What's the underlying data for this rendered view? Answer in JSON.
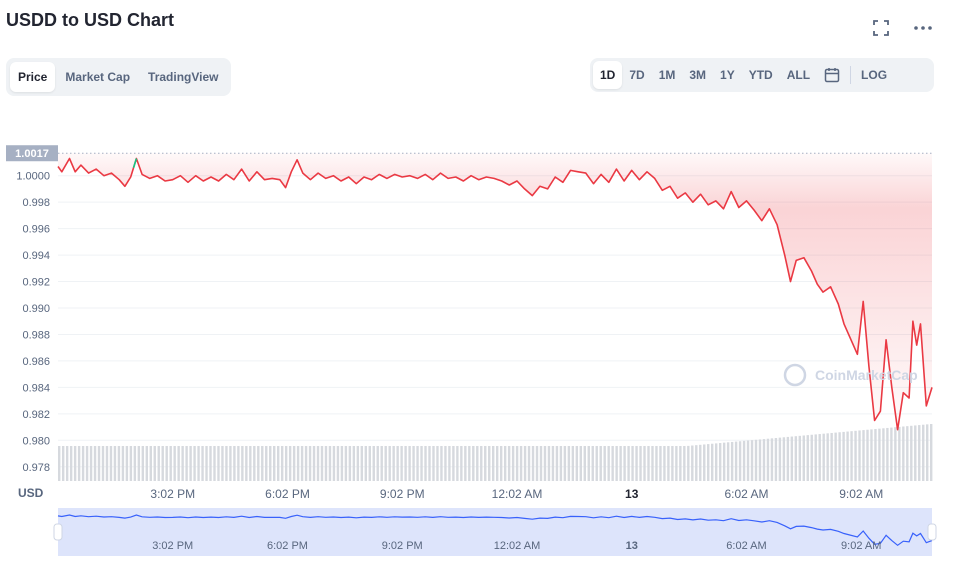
{
  "header": {
    "title": "USDD to USD Chart",
    "fullscreen_icon": "expand-icon",
    "more_icon": "more-dots-icon"
  },
  "view_tabs": [
    {
      "label": "Price",
      "active": true
    },
    {
      "label": "Market Cap",
      "active": false
    },
    {
      "label": "TradingView",
      "active": false
    }
  ],
  "range_tabs": [
    {
      "label": "1D",
      "active": true
    },
    {
      "label": "7D",
      "active": false
    },
    {
      "label": "1M",
      "active": false
    },
    {
      "label": "3M",
      "active": false
    },
    {
      "label": "1Y",
      "active": false
    },
    {
      "label": "YTD",
      "active": false
    },
    {
      "label": "ALL",
      "active": false
    }
  ],
  "calendar_icon": "calendar-icon",
  "log_label": "LOG",
  "colors": {
    "line": "#ea3943",
    "line_up": "#16c784",
    "volume": "#d6d9de",
    "nav_line": "#3861fb",
    "nav_fill": "#dde4fb",
    "price_tag_bg": "#a6b0c3"
  },
  "chart_data": {
    "type": "line",
    "currency_label": "USD",
    "watermark": "CoinMarketCap",
    "current_price_label": "1.0017",
    "reference_price": 1.0017,
    "ylim": [
      0.977,
      1.0027
    ],
    "y_ticks": [
      {
        "value": 1.0,
        "label": "1.0000"
      },
      {
        "value": 0.998,
        "label": "0.998"
      },
      {
        "value": 0.996,
        "label": "0.996"
      },
      {
        "value": 0.994,
        "label": "0.994"
      },
      {
        "value": 0.992,
        "label": "0.992"
      },
      {
        "value": 0.99,
        "label": "0.990"
      },
      {
        "value": 0.988,
        "label": "0.988"
      },
      {
        "value": 0.986,
        "label": "0.986"
      },
      {
        "value": 0.984,
        "label": "0.984"
      },
      {
        "value": 0.982,
        "label": "0.982"
      },
      {
        "value": 0.98,
        "label": "0.980"
      },
      {
        "value": 0.978,
        "label": "0.978"
      }
    ],
    "x_ticks": [
      {
        "label": "3:02 PM",
        "hour": 3
      },
      {
        "label": "6:02 PM",
        "hour": 6
      },
      {
        "label": "9:02 PM",
        "hour": 9
      },
      {
        "label": "12:02 AM",
        "hour": 12
      },
      {
        "label": "13",
        "hour": 15,
        "bold": true
      },
      {
        "label": "6:02 AM",
        "hour": 18
      },
      {
        "label": "9:02 AM",
        "hour": 21
      }
    ],
    "price": [
      [
        0,
        1.0007
      ],
      [
        0.1,
        1.0003
      ],
      [
        0.3,
        1.0013
      ],
      [
        0.45,
        1.0003
      ],
      [
        0.6,
        1.0008
      ],
      [
        0.8,
        1.0002
      ],
      [
        1.0,
        1.0005
      ],
      [
        1.2,
        1.0
      ],
      [
        1.4,
        1.0002
      ],
      [
        1.6,
        0.9997
      ],
      [
        1.75,
        0.9992
      ],
      [
        1.9,
        0.9999
      ],
      [
        2.05,
        1.0013
      ],
      [
        2.2,
        1.0001
      ],
      [
        2.4,
        0.9998
      ],
      [
        2.6,
        1.0
      ],
      [
        2.8,
        0.9996
      ],
      [
        3.0,
        0.9997
      ],
      [
        3.2,
        1.0
      ],
      [
        3.4,
        0.9995
      ],
      [
        3.6,
        1.0
      ],
      [
        3.8,
        0.9996
      ],
      [
        4.0,
        0.9999
      ],
      [
        4.2,
        0.9996
      ],
      [
        4.4,
        1.0001
      ],
      [
        4.6,
        0.9997
      ],
      [
        4.8,
        1.0005
      ],
      [
        5.0,
        0.9996
      ],
      [
        5.2,
        1.0003
      ],
      [
        5.4,
        0.9997
      ],
      [
        5.6,
        0.9998
      ],
      [
        5.8,
        0.9997
      ],
      [
        5.95,
        0.9991
      ],
      [
        6.1,
        1.0003
      ],
      [
        6.25,
        1.0012
      ],
      [
        6.4,
        1.0002
      ],
      [
        6.6,
        0.9997
      ],
      [
        6.8,
        1.0002
      ],
      [
        7.0,
        0.9998
      ],
      [
        7.2,
        1.0
      ],
      [
        7.4,
        0.9996
      ],
      [
        7.6,
        0.9999
      ],
      [
        7.8,
        0.9994
      ],
      [
        8.0,
        0.9999
      ],
      [
        8.2,
        0.9997
      ],
      [
        8.4,
        1.0001
      ],
      [
        8.6,
        0.9998
      ],
      [
        8.8,
        1.0001
      ],
      [
        9.0,
        0.9999
      ],
      [
        9.2,
        1.0
      ],
      [
        9.4,
        0.9998
      ],
      [
        9.6,
        1.0001
      ],
      [
        9.8,
        0.9997
      ],
      [
        10.0,
        1.0002
      ],
      [
        10.2,
        0.9998
      ],
      [
        10.4,
        0.9999
      ],
      [
        10.6,
        0.9996
      ],
      [
        10.8,
        1.0
      ],
      [
        11.0,
        0.9997
      ],
      [
        11.2,
        0.9999
      ],
      [
        11.4,
        0.9998
      ],
      [
        11.6,
        0.9996
      ],
      [
        11.8,
        0.9993
      ],
      [
        12.0,
        0.9996
      ],
      [
        12.2,
        0.999
      ],
      [
        12.4,
        0.9985
      ],
      [
        12.6,
        0.9992
      ],
      [
        12.8,
        0.999
      ],
      [
        13.0,
        0.9999
      ],
      [
        13.2,
        0.9995
      ],
      [
        13.4,
        1.0004
      ],
      [
        13.6,
        1.0003
      ],
      [
        13.8,
        1.0002
      ],
      [
        14.0,
        0.9994
      ],
      [
        14.2,
        1.0001
      ],
      [
        14.4,
        0.9995
      ],
      [
        14.6,
        1.0005
      ],
      [
        14.8,
        0.9996
      ],
      [
        15.0,
        1.0004
      ],
      [
        15.2,
        0.9997
      ],
      [
        15.4,
        1.0003
      ],
      [
        15.6,
        0.9998
      ],
      [
        15.8,
        0.9989
      ],
      [
        16.0,
        0.9992
      ],
      [
        16.2,
        0.9983
      ],
      [
        16.4,
        0.9987
      ],
      [
        16.6,
        0.998
      ],
      [
        16.8,
        0.9986
      ],
      [
        17.0,
        0.9978
      ],
      [
        17.2,
        0.9981
      ],
      [
        17.4,
        0.9975
      ],
      [
        17.6,
        0.9988
      ],
      [
        17.8,
        0.9976
      ],
      [
        18.0,
        0.9981
      ],
      [
        18.2,
        0.9974
      ],
      [
        18.4,
        0.9966
      ],
      [
        18.6,
        0.9975
      ],
      [
        18.8,
        0.9963
      ],
      [
        19.0,
        0.994
      ],
      [
        19.15,
        0.992
      ],
      [
        19.3,
        0.9936
      ],
      [
        19.5,
        0.9938
      ],
      [
        19.7,
        0.9928
      ],
      [
        19.85,
        0.9918
      ],
      [
        20.0,
        0.9912
      ],
      [
        20.2,
        0.9916
      ],
      [
        20.4,
        0.9903
      ],
      [
        20.55,
        0.9888
      ],
      [
        20.7,
        0.9878
      ],
      [
        20.9,
        0.9865
      ],
      [
        21.05,
        0.9905
      ],
      [
        21.2,
        0.9856
      ],
      [
        21.35,
        0.9815
      ],
      [
        21.5,
        0.9822
      ],
      [
        21.65,
        0.9876
      ],
      [
        21.8,
        0.984
      ],
      [
        21.95,
        0.9808
      ],
      [
        22.1,
        0.9836
      ],
      [
        22.25,
        0.9832
      ],
      [
        22.35,
        0.989
      ],
      [
        22.45,
        0.9872
      ],
      [
        22.55,
        0.9888
      ],
      [
        22.7,
        0.9826
      ],
      [
        22.85,
        0.984
      ]
    ]
  }
}
